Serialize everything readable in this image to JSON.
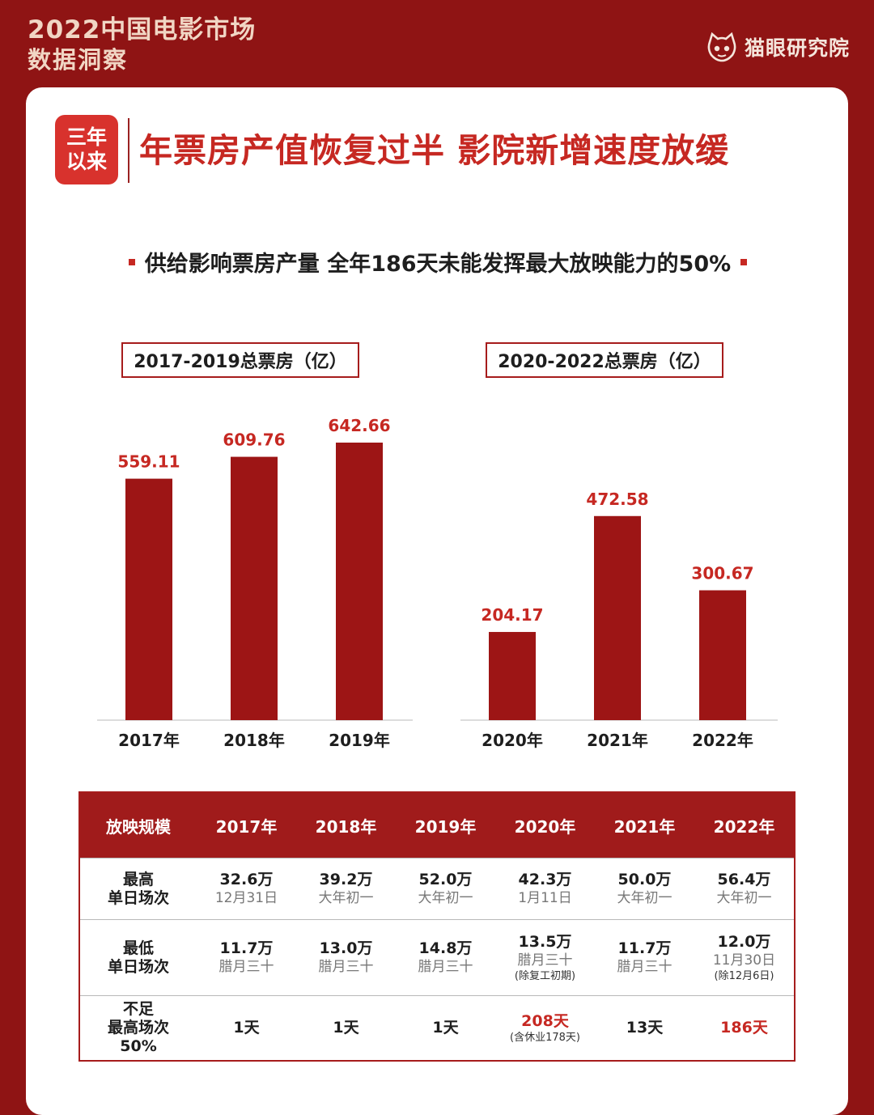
{
  "header": {
    "line1": "2022中国电影市场",
    "line2": "数据洞察",
    "brand": "猫眼研究院",
    "brand_icon": "cat-eye-logo-icon"
  },
  "badge": {
    "line1": "三年",
    "line2": "以来"
  },
  "main_title": "年票房产值恢复过半 影院新增速度放缓",
  "subtitle": "供给影响票房产量 全年186天未能发挥最大放映能力的50%",
  "colors": {
    "bar": "#9d1515",
    "accent": "#c62822",
    "background": "#8f1414"
  },
  "chart_data": [
    {
      "type": "bar",
      "title": "2017-2019总票房（亿）",
      "categories": [
        "2017年",
        "2018年",
        "2019年"
      ],
      "values": [
        559.11,
        609.76,
        642.66
      ],
      "value_labels": [
        "559.11",
        "609.76",
        "642.66"
      ]
    },
    {
      "type": "bar",
      "title": "2020-2022总票房（亿）",
      "categories": [
        "2020年",
        "2021年",
        "2022年"
      ],
      "values": [
        204.17,
        472.58,
        300.67
      ],
      "value_labels": [
        "204.17",
        "472.58",
        "300.67"
      ]
    }
  ],
  "table": {
    "headers": [
      "放映规模",
      "2017年",
      "2018年",
      "2019年",
      "2020年",
      "2021年",
      "2022年"
    ],
    "row1": {
      "label1": "最高",
      "label2": "单日场次",
      "cells": [
        {
          "v": "32.6万",
          "s": "12月31日"
        },
        {
          "v": "39.2万",
          "s": "大年初一"
        },
        {
          "v": "52.0万",
          "s": "大年初一"
        },
        {
          "v": "42.3万",
          "s": "1月11日"
        },
        {
          "v": "50.0万",
          "s": "大年初一"
        },
        {
          "v": "56.4万",
          "s": "大年初一"
        }
      ]
    },
    "row2": {
      "label1": "最低",
      "label2": "单日场次",
      "cells": [
        {
          "v": "11.7万",
          "s": "腊月三十"
        },
        {
          "v": "13.0万",
          "s": "腊月三十"
        },
        {
          "v": "14.8万",
          "s": "腊月三十"
        },
        {
          "v": "13.5万",
          "s": "腊月三十",
          "n": "(除复工初期)"
        },
        {
          "v": "11.7万",
          "s": "腊月三十"
        },
        {
          "v": "12.0万",
          "s": "11月30日",
          "n": "(除12月6日)"
        }
      ]
    },
    "row3": {
      "label1": "不足",
      "label2": "最高场次",
      "label3": "50%",
      "cells": [
        {
          "v": "1天"
        },
        {
          "v": "1天"
        },
        {
          "v": "1天"
        },
        {
          "v": "208天",
          "n": "(含休业178天)"
        },
        {
          "v": "13天"
        },
        {
          "v": "186天"
        }
      ]
    }
  }
}
